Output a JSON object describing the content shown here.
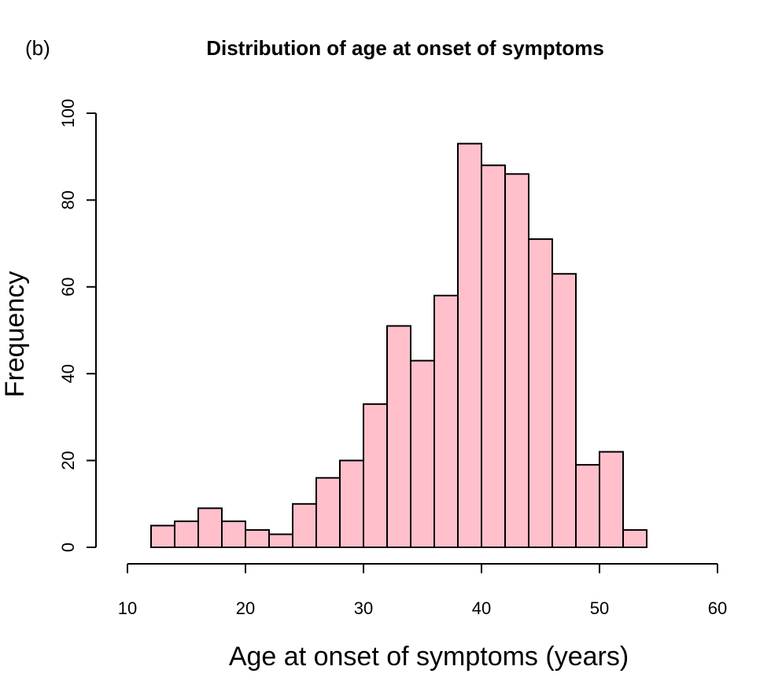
{
  "panel_label": "(b)",
  "chart_data": {
    "type": "bar",
    "subtype": "histogram",
    "title": "Distribution of age at onset of symptoms",
    "xlabel": "Age at onset of symptoms (years)",
    "ylabel": "Frequency",
    "xlim": [
      10,
      60
    ],
    "ylim": [
      0,
      100
    ],
    "x_ticks": [
      10,
      20,
      30,
      40,
      50,
      60
    ],
    "y_ticks": [
      0,
      20,
      40,
      60,
      80,
      100
    ],
    "x_tick_labels": [
      "10",
      "20",
      "30",
      "40",
      "50",
      "60"
    ],
    "y_tick_labels": [
      "0",
      "20",
      "40",
      "60",
      "80",
      "100"
    ],
    "bins": [
      {
        "start": 12,
        "end": 14,
        "value": 5
      },
      {
        "start": 14,
        "end": 16,
        "value": 6
      },
      {
        "start": 16,
        "end": 18,
        "value": 9
      },
      {
        "start": 18,
        "end": 20,
        "value": 6
      },
      {
        "start": 20,
        "end": 22,
        "value": 4
      },
      {
        "start": 22,
        "end": 24,
        "value": 3
      },
      {
        "start": 24,
        "end": 26,
        "value": 10
      },
      {
        "start": 26,
        "end": 28,
        "value": 16
      },
      {
        "start": 28,
        "end": 30,
        "value": 20
      },
      {
        "start": 30,
        "end": 32,
        "value": 33
      },
      {
        "start": 32,
        "end": 34,
        "value": 51
      },
      {
        "start": 34,
        "end": 36,
        "value": 43
      },
      {
        "start": 36,
        "end": 38,
        "value": 58
      },
      {
        "start": 38,
        "end": 40,
        "value": 93
      },
      {
        "start": 40,
        "end": 42,
        "value": 88
      },
      {
        "start": 42,
        "end": 44,
        "value": 86
      },
      {
        "start": 44,
        "end": 46,
        "value": 71
      },
      {
        "start": 46,
        "end": 48,
        "value": 63
      },
      {
        "start": 48,
        "end": 50,
        "value": 19
      },
      {
        "start": 50,
        "end": 52,
        "value": 22
      },
      {
        "start": 52,
        "end": 54,
        "value": 4
      }
    ],
    "bar_color": "#ffc0cb",
    "bar_border_color": "#000000",
    "grid": false,
    "legend": "none"
  }
}
